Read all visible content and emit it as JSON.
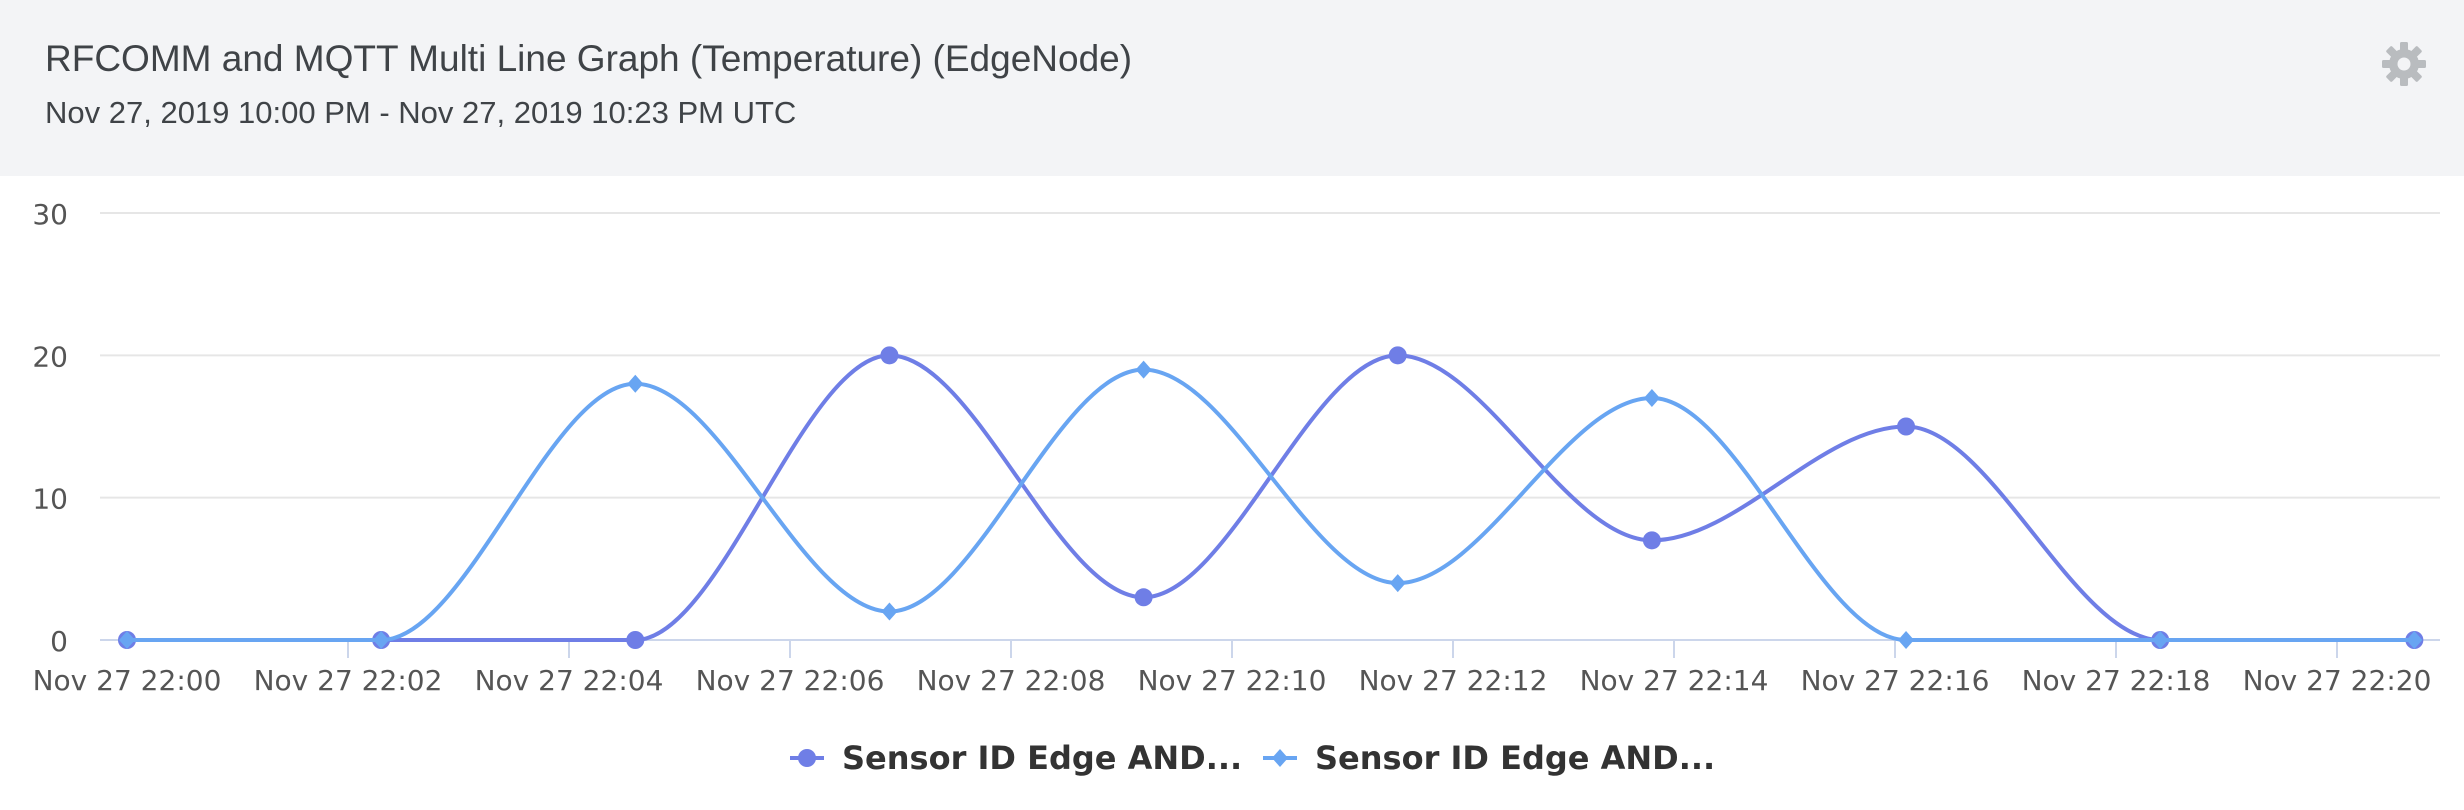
{
  "header": {
    "title": "RFCOMM and MQTT Multi Line Graph (Temperature) (EdgeNode)",
    "subtitle": "Nov 27, 2019 10:00 PM - Nov 27, 2019 10:23 PM UTC",
    "settings_icon": "gear-icon"
  },
  "colors": {
    "header_bg": "#f3f4f6",
    "series_1": "#6f7ee6",
    "series_2": "#68a5f2",
    "grid": "#e6e6e6",
    "axis_text": "#555555"
  },
  "chart_data": {
    "type": "line",
    "xlabel": "",
    "ylabel": "",
    "ylim": [
      0,
      30
    ],
    "yticks": [
      0,
      10,
      20,
      30
    ],
    "xlim": [
      "Nov 27 22:00",
      "Nov 27 22:20"
    ],
    "xticks": [
      "Nov 27 22:00",
      "Nov 27 22:02",
      "Nov 27 22:04",
      "Nov 27 22:06",
      "Nov 27 22:08",
      "Nov 27 22:10",
      "Nov 27 22:12",
      "Nov 27 22:14",
      "Nov 27 22:16",
      "Nov 27 22:18",
      "Nov 27 22:20"
    ],
    "grid": true,
    "legend_position": "bottom-center",
    "series": [
      {
        "name": "Sensor ID Edge AND...",
        "marker": "circle",
        "x": [
          "22:00:00",
          "22:02:18",
          "22:04:36",
          "22:06:54",
          "22:09:12",
          "22:11:30",
          "22:13:48",
          "22:16:06",
          "22:18:24",
          "22:20:42"
        ],
        "values": [
          0,
          0,
          0,
          20,
          3,
          20,
          7,
          15,
          0,
          0
        ]
      },
      {
        "name": "Sensor ID Edge AND...",
        "marker": "diamond",
        "x": [
          "22:00:00",
          "22:02:18",
          "22:04:36",
          "22:06:54",
          "22:09:12",
          "22:11:30",
          "22:13:48",
          "22:16:06",
          "22:18:24",
          "22:20:42"
        ],
        "values": [
          0,
          0,
          18,
          2,
          19,
          4,
          17,
          0,
          0,
          0
        ]
      }
    ]
  }
}
